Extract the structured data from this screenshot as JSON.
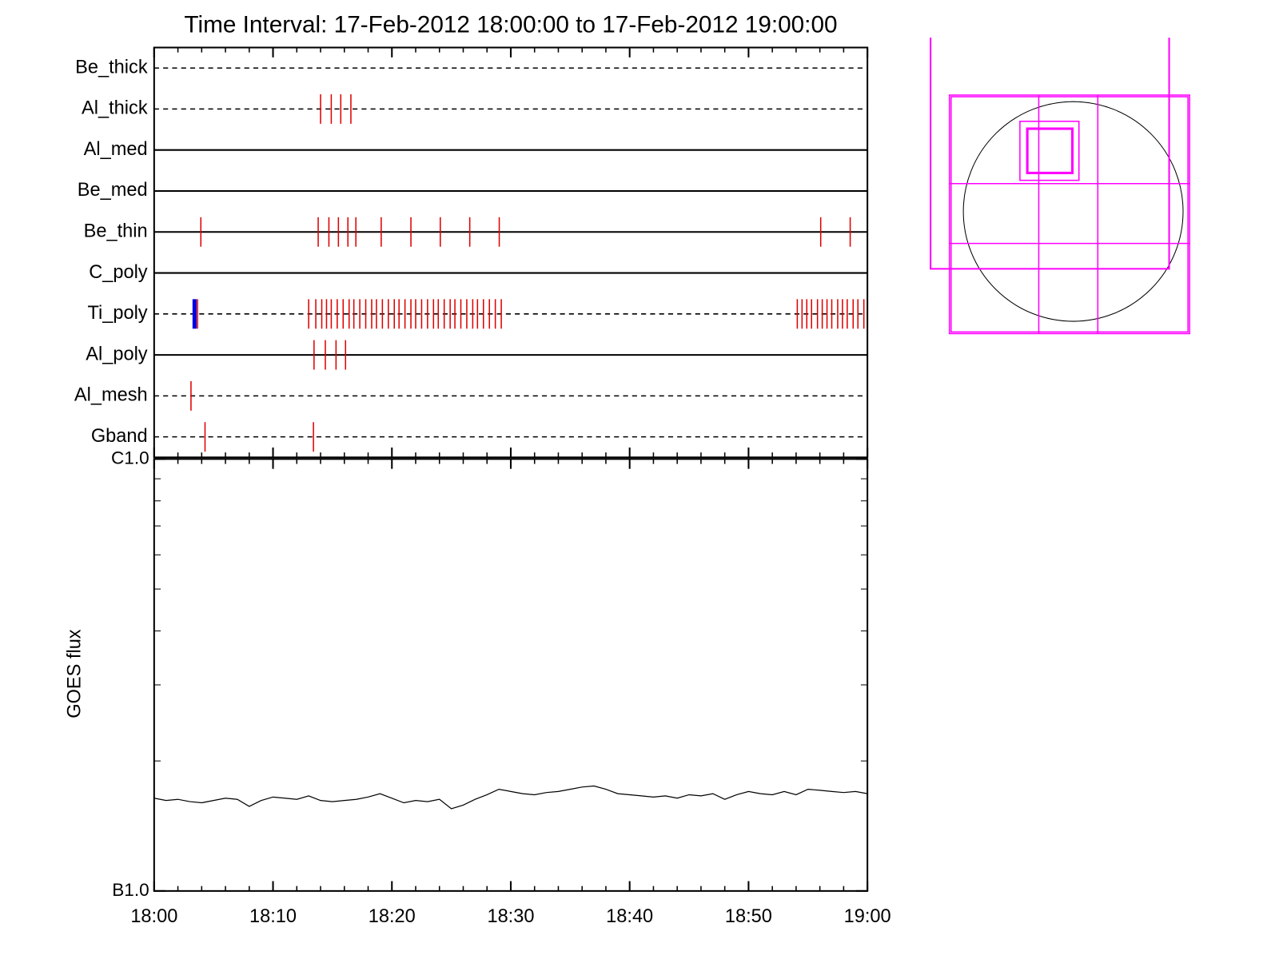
{
  "chart_data": [
    {
      "type": "events",
      "title": "Time Interval: 17-Feb-2012 18:00:00 to 17-Feb-2012 19:00:00",
      "xlim": [
        0,
        60
      ],
      "xticks": [
        0,
        10,
        20,
        30,
        40,
        50,
        60
      ],
      "xminor": [
        2,
        4,
        6,
        8,
        12,
        14,
        16,
        18,
        22,
        24,
        26,
        28,
        32,
        34,
        36,
        38,
        42,
        44,
        46,
        48,
        52,
        54,
        56,
        58
      ],
      "event_color": "#e00000",
      "rows": [
        {
          "name": "Be_thick",
          "line": "dashed",
          "events": []
        },
        {
          "name": "Al_thick",
          "line": "dashed",
          "events": [
            14.0,
            14.9,
            15.7,
            16.55
          ]
        },
        {
          "name": "Al_med",
          "line": "solid",
          "events": []
        },
        {
          "name": "Be_med",
          "line": "solid",
          "events": []
        },
        {
          "name": "Be_thin",
          "line": "solid",
          "events": [
            3.93,
            13.8,
            14.7,
            15.5,
            16.3,
            16.97,
            19.1,
            21.6,
            24.07,
            26.55,
            29.03,
            56.07,
            58.55
          ]
        },
        {
          "name": "C_poly",
          "line": "solid",
          "events": []
        },
        {
          "name": "Ti_poly",
          "line": "dashed",
          "events": [
            3.65,
            13.0,
            13.6,
            14.1,
            14.5,
            14.9,
            15.4,
            15.9,
            16.4,
            16.8,
            17.3,
            17.8,
            18.3,
            18.7,
            19.2,
            19.7,
            20.2,
            20.6,
            21.1,
            21.6,
            22.0,
            22.5,
            23.0,
            23.5,
            23.9,
            24.4,
            24.9,
            25.3,
            25.8,
            26.3,
            26.8,
            27.2,
            27.7,
            28.2,
            28.7,
            29.2,
            54.1,
            54.5,
            54.9,
            55.3,
            55.8,
            56.2,
            56.6,
            57.0,
            57.5,
            57.9,
            58.3,
            58.8,
            59.2,
            59.7
          ]
        },
        {
          "name": "Al_poly",
          "line": "solid",
          "events": [
            13.45,
            14.4,
            15.3,
            16.1
          ]
        },
        {
          "name": "Al_mesh",
          "line": "dashed",
          "events": [
            3.1
          ]
        },
        {
          "name": "Gband",
          "line": "dashed",
          "events": [
            4.28,
            13.4
          ]
        }
      ],
      "highlight": {
        "row": 6,
        "x": 3.4,
        "color": "#0000e0"
      }
    },
    {
      "type": "line",
      "ylabel": "GOES flux",
      "log_y": true,
      "xlim": [
        0,
        60
      ],
      "xticks": [
        {
          "value": 0,
          "label": "18:00"
        },
        {
          "value": 10,
          "label": "18:10"
        },
        {
          "value": 20,
          "label": "18:20"
        },
        {
          "value": 30,
          "label": "18:30"
        },
        {
          "value": 40,
          "label": "18:40"
        },
        {
          "value": 50,
          "label": "18:50"
        },
        {
          "value": 60,
          "label": "19:00"
        }
      ],
      "xminor": [
        2,
        4,
        6,
        8,
        12,
        14,
        16,
        18,
        22,
        24,
        26,
        28,
        32,
        34,
        36,
        38,
        42,
        44,
        46,
        48,
        52,
        54,
        56,
        58
      ],
      "ylim": [
        1e-07,
        1e-06
      ],
      "yticks": [
        {
          "value": 1e-07,
          "label": "B1.0"
        },
        {
          "value": 1e-06,
          "label": "C1.0"
        }
      ],
      "yminor": [
        2e-07,
        3e-07,
        4e-07,
        5e-07,
        6e-07,
        7e-07,
        8e-07,
        9e-07
      ],
      "x": [
        0,
        1,
        2,
        3,
        4,
        5,
        6,
        7,
        8,
        9,
        10,
        11,
        12,
        13,
        14,
        15,
        16,
        17,
        18,
        19,
        20,
        21,
        22,
        23,
        24,
        25,
        26,
        27,
        28,
        29,
        30,
        31,
        32,
        33,
        34,
        35,
        36,
        37,
        38,
        39,
        40,
        41,
        42,
        43,
        44,
        45,
        46,
        47,
        48,
        49,
        50,
        51,
        52,
        53,
        54,
        55,
        56,
        57,
        58,
        59,
        60
      ],
      "series": [
        {
          "color": "#000000",
          "values": [
            1.64e-07,
            1.62e-07,
            1.63e-07,
            1.61e-07,
            1.6e-07,
            1.62e-07,
            1.64e-07,
            1.63e-07,
            1.57e-07,
            1.62e-07,
            1.65e-07,
            1.64e-07,
            1.63e-07,
            1.66e-07,
            1.62e-07,
            1.61e-07,
            1.62e-07,
            1.63e-07,
            1.65e-07,
            1.68e-07,
            1.64e-07,
            1.6e-07,
            1.62e-07,
            1.61e-07,
            1.63e-07,
            1.55e-07,
            1.58e-07,
            1.63e-07,
            1.67e-07,
            1.72e-07,
            1.7e-07,
            1.68e-07,
            1.67e-07,
            1.69e-07,
            1.7e-07,
            1.72e-07,
            1.74e-07,
            1.75e-07,
            1.72e-07,
            1.68e-07,
            1.67e-07,
            1.66e-07,
            1.65e-07,
            1.66e-07,
            1.64e-07,
            1.67e-07,
            1.66e-07,
            1.68e-07,
            1.63e-07,
            1.67e-07,
            1.7e-07,
            1.68e-07,
            1.67e-07,
            1.7e-07,
            1.67e-07,
            1.72e-07,
            1.71e-07,
            1.7e-07,
            1.69e-07,
            1.7e-07,
            1.68e-07
          ]
        }
      ]
    }
  ]
}
